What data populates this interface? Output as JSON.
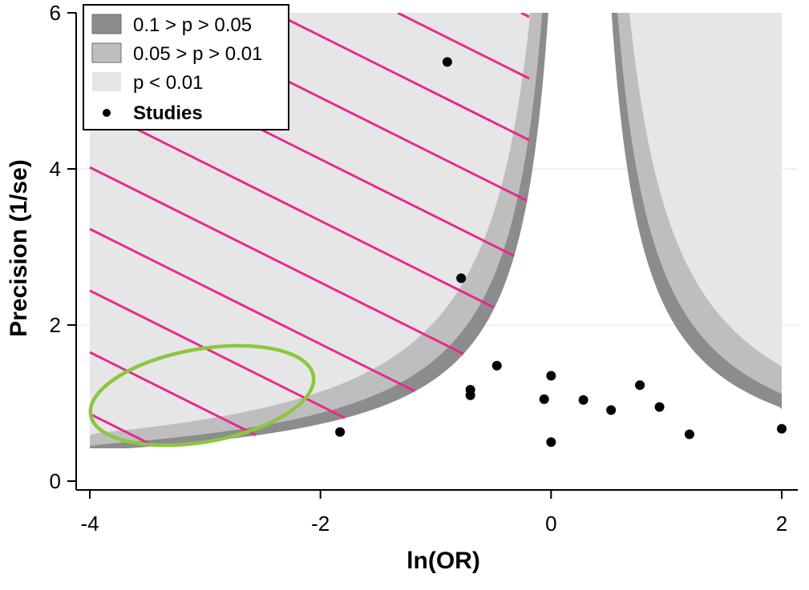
{
  "chart_data": {
    "type": "scatter",
    "subtype": "contour-enhanced funnel plot",
    "xlabel": "ln(OR)",
    "ylabel": "Precision (1/se)",
    "xlim": [
      -4,
      2
    ],
    "ylim": [
      0,
      6
    ],
    "x_ticks": [
      "-4",
      "-2",
      "0",
      "2"
    ],
    "y_ticks": [
      "0",
      "2",
      "4",
      "6"
    ],
    "contour_center": 0.25,
    "contours": [
      {
        "name": "0.1 > p > 0.05",
        "z": 1.645,
        "color": "#8c8c8c"
      },
      {
        "name": "0.05 > p > 0.01",
        "z": 1.96,
        "color": "#bebebe"
      },
      {
        "name": "p < 0.01",
        "z": 2.576,
        "color": "#e6e6e6"
      }
    ],
    "series": [
      {
        "name": "Studies",
        "points": [
          {
            "x": -0.9,
            "y": 5.37
          },
          {
            "x": -0.78,
            "y": 2.6
          },
          {
            "x": -1.83,
            "y": 0.63
          },
          {
            "x": -0.7,
            "y": 1.17
          },
          {
            "x": -0.7,
            "y": 1.1
          },
          {
            "x": -0.47,
            "y": 1.48
          },
          {
            "x": 0.0,
            "y": 1.35
          },
          {
            "x": -0.06,
            "y": 1.05
          },
          {
            "x": 0.0,
            "y": 0.5
          },
          {
            "x": 0.28,
            "y": 1.04
          },
          {
            "x": 0.52,
            "y": 0.91
          },
          {
            "x": 0.77,
            "y": 1.23
          },
          {
            "x": 0.94,
            "y": 0.95
          },
          {
            "x": 1.2,
            "y": 0.6
          },
          {
            "x": 2.0,
            "y": 0.67
          }
        ]
      }
    ],
    "grid": true,
    "legend_position": "top-left",
    "annotation_colors": {
      "hatch": "#e8288f",
      "ellipse": "#8cc63f"
    }
  }
}
